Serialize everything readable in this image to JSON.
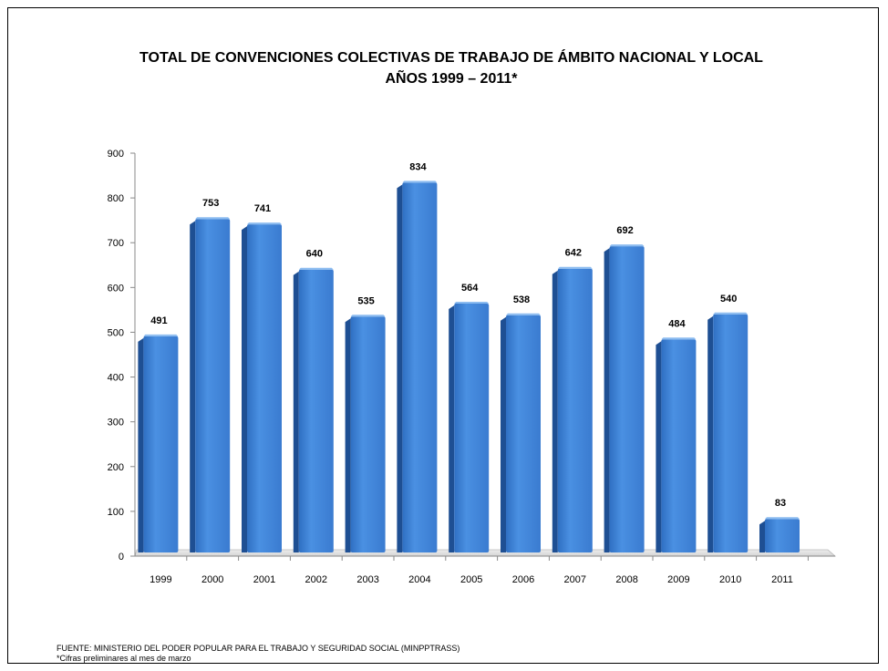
{
  "chart_data": {
    "type": "bar",
    "title_line1": "TOTAL DE CONVENCIONES COLECTIVAS DE TRABAJO DE ÁMBITO NACIONAL Y LOCAL",
    "title_line2": "AÑOS 1999 – 2011*",
    "categories": [
      "1999",
      "2000",
      "2001",
      "2002",
      "2003",
      "2004",
      "2005",
      "2006",
      "2007",
      "2008",
      "2009",
      "2010",
      "2011"
    ],
    "values": [
      491,
      753,
      741,
      640,
      535,
      834,
      564,
      538,
      642,
      692,
      484,
      540,
      83
    ],
    "ylim": [
      0,
      900
    ],
    "yticks": [
      0,
      100,
      200,
      300,
      400,
      500,
      600,
      700,
      800,
      900
    ],
    "xlabel": "",
    "ylabel": "",
    "grid": false,
    "bar_color": "#3d7fd1"
  },
  "footer": {
    "source": "FUENTE: MINISTERIO DEL PODER POPULAR PARA EL TRABAJO Y SEGURIDAD SOCIAL (MINPPTRASS)",
    "note": "*Cifras preliminares al mes de marzo"
  }
}
